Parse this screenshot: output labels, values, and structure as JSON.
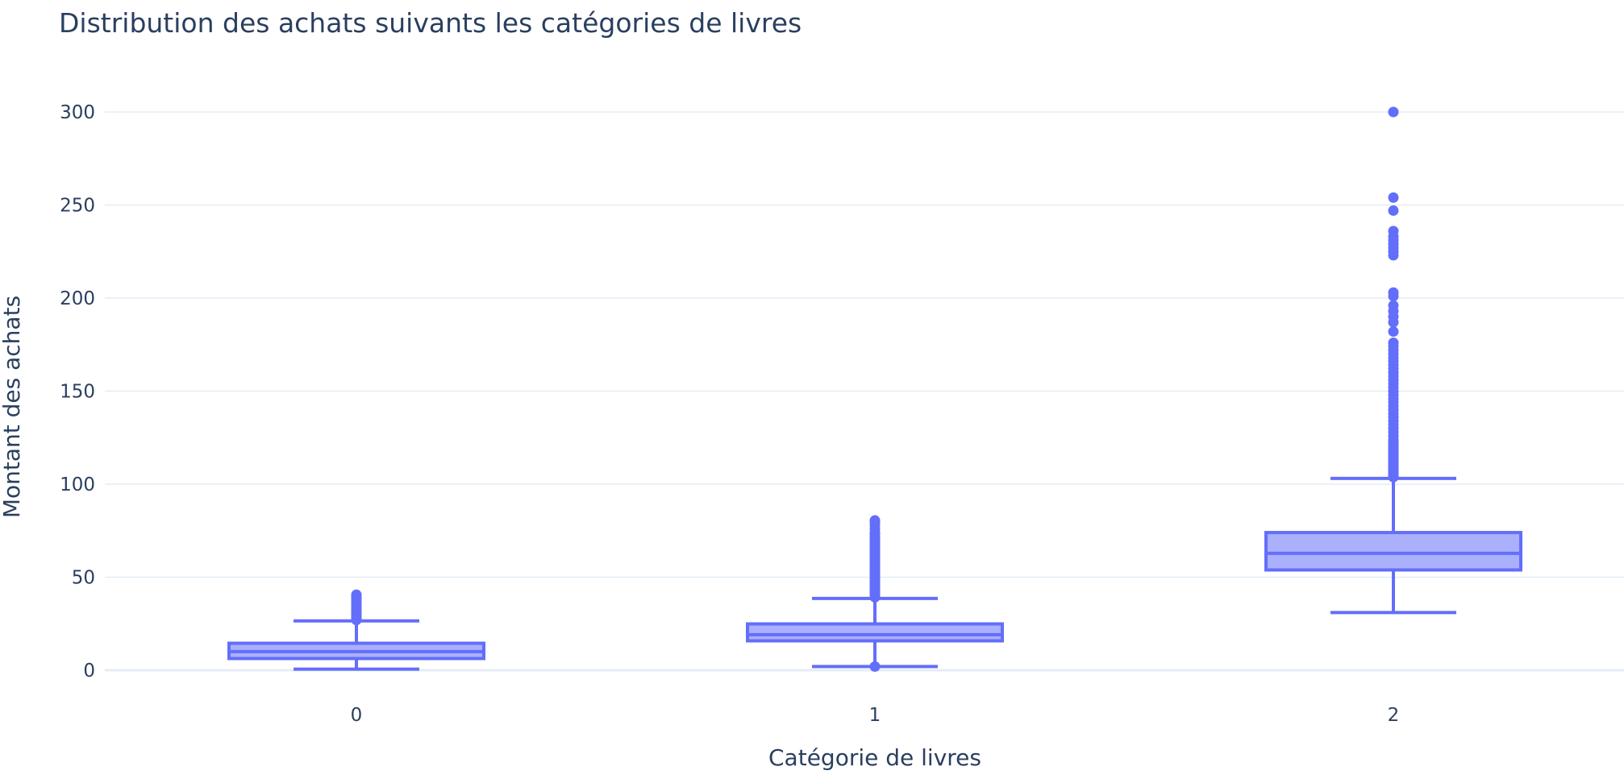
{
  "chart_data": {
    "type": "box",
    "title": "Distribution des achats suivants les catégories de livres",
    "xlabel": "Catégorie de livres",
    "ylabel": "Montant des achats",
    "categories": [
      "0",
      "1",
      "2"
    ],
    "ylim": [
      -10,
      310
    ],
    "yticks": [
      0,
      50,
      100,
      150,
      200,
      250,
      300
    ],
    "grid": true,
    "legend": "none",
    "colors": {
      "box_line": "#636efa",
      "box_fill": "#aab0fb",
      "grid": "#e5ecf6",
      "text": "#2a3f5f"
    },
    "boxes": [
      {
        "category": "0",
        "lowerfence": 0.6,
        "q1": 6.3,
        "median": 10.0,
        "q3": 14.5,
        "upperfence": 26.5,
        "outliers": [
          27,
          27.6,
          28.2,
          28.8,
          29.4,
          30,
          30.7,
          31.4,
          32,
          32.8,
          33.5,
          34.3,
          35,
          35.8,
          36.6,
          37.4,
          38.2,
          39,
          39.8,
          40.6
        ]
      },
      {
        "category": "1",
        "lowerfence": 2.0,
        "q1": 15.8,
        "median": 19.1,
        "q3": 24.9,
        "upperfence": 38.6,
        "outliers": [
          2.0,
          39.2,
          40,
          40.8,
          41.6,
          42.4,
          43.2,
          44,
          44.8,
          45.6,
          46.4,
          47.2,
          48,
          48.8,
          49.6,
          50.4,
          51.2,
          52,
          53,
          54,
          55,
          56,
          57,
          58,
          59,
          60,
          61,
          62,
          63,
          64,
          65,
          66,
          67,
          68,
          69,
          70,
          71,
          72,
          73,
          74,
          76,
          78,
          79.5,
          80.5
        ]
      },
      {
        "category": "2",
        "lowerfence": 30.99,
        "q1": 53.9,
        "median": 62.8,
        "q3": 74.0,
        "upperfence": 103.1,
        "outliers": [
          103.8,
          105,
          106,
          107,
          108,
          109,
          110,
          111,
          112,
          113,
          114,
          115,
          116,
          117,
          118,
          119,
          120,
          121,
          122,
          123,
          124,
          126,
          128,
          130,
          132,
          134,
          136,
          138,
          140,
          142,
          144,
          146,
          148,
          150,
          152,
          154,
          156,
          158,
          160,
          162,
          164,
          166,
          168,
          170,
          172,
          174,
          176,
          182,
          187,
          190,
          193,
          196,
          201,
          203,
          223,
          225,
          227,
          229,
          231,
          233,
          236,
          247,
          254,
          300
        ]
      }
    ]
  }
}
